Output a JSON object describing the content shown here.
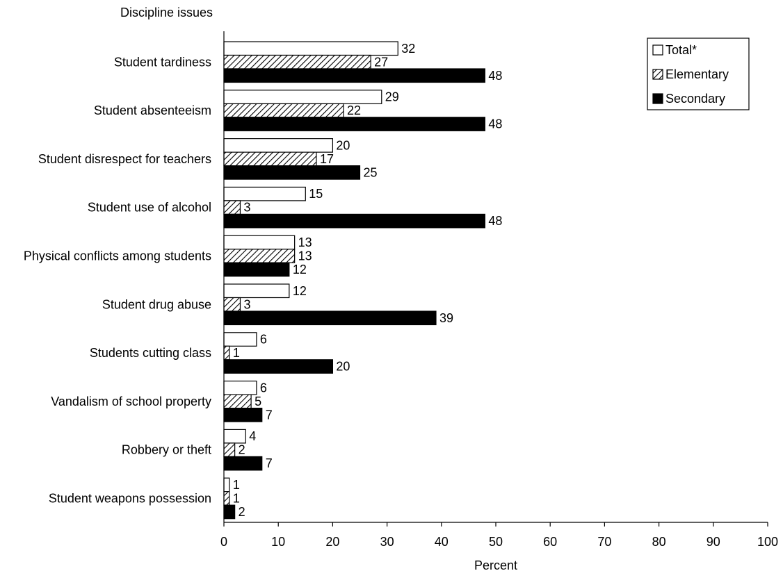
{
  "chart_data": {
    "type": "bar",
    "orientation": "horizontal",
    "ytitle": "Discipline issues",
    "xlabel": "Percent",
    "xlim": [
      0,
      100
    ],
    "xticks": [
      0,
      10,
      20,
      30,
      40,
      50,
      60,
      70,
      80,
      90,
      100
    ],
    "grid": false,
    "legend_position": "top-right",
    "categories": [
      "Student tardiness",
      "Student absenteeism",
      "Student disrespect for teachers",
      "Student use of alcohol",
      "Physical conflicts among students",
      "Student drug abuse",
      "Students cutting class",
      "Vandalism of school property",
      "Robbery or theft",
      "Student weapons possession"
    ],
    "series": [
      {
        "name": "Total*",
        "fill": "white",
        "values": [
          32,
          29,
          20,
          15,
          13,
          12,
          6,
          6,
          4,
          1
        ]
      },
      {
        "name": "Elementary",
        "fill": "hatched",
        "values": [
          27,
          22,
          17,
          3,
          13,
          3,
          1,
          5,
          2,
          1
        ]
      },
      {
        "name": "Secondary",
        "fill": "black",
        "values": [
          48,
          48,
          25,
          48,
          12,
          39,
          20,
          7,
          7,
          2
        ]
      }
    ]
  }
}
